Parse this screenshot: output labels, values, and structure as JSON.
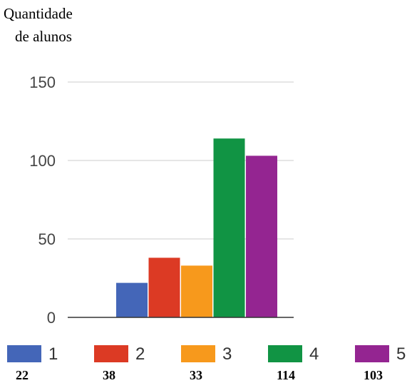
{
  "chart_data": {
    "type": "bar",
    "ylabel_line1": "Quantidade",
    "ylabel_line2": "de alunos",
    "ylim": [
      0,
      150
    ],
    "yticks": [
      0,
      50,
      100,
      150
    ],
    "grid": true,
    "legend_position": "bottom",
    "series": [
      {
        "name": "1",
        "value": 22,
        "color": "#4466b8"
      },
      {
        "name": "2",
        "value": 38,
        "color": "#dc3a24"
      },
      {
        "name": "3",
        "value": 33,
        "color": "#f7991c"
      },
      {
        "name": "4",
        "value": 114,
        "color": "#119444"
      },
      {
        "name": "5",
        "value": 103,
        "color": "#942591"
      }
    ]
  }
}
